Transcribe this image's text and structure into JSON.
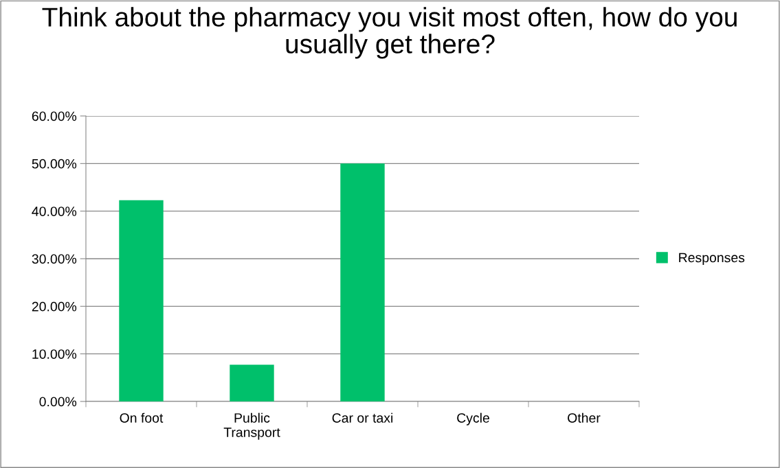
{
  "chart_data": {
    "type": "bar",
    "title": "Think about the pharmacy you visit most often, how do you usually get there?",
    "categories": [
      "On foot",
      "Public\nTransport",
      "Car or taxi",
      "Cycle",
      "Other"
    ],
    "series": [
      {
        "name": "Responses",
        "color": "#00c06b",
        "values": [
          42.3,
          7.7,
          50.0,
          0,
          0
        ]
      }
    ],
    "ylim": [
      0,
      60
    ],
    "yticks": [
      {
        "value": 0,
        "label": "0.00%"
      },
      {
        "value": 10,
        "label": "10.00%"
      },
      {
        "value": 20,
        "label": "20.00%"
      },
      {
        "value": 30,
        "label": "30.00%"
      },
      {
        "value": 40,
        "label": "40.00%"
      },
      {
        "value": 50,
        "label": "50.00%"
      },
      {
        "value": 60,
        "label": "60.00%"
      }
    ],
    "grid": "y",
    "legend": "right"
  }
}
